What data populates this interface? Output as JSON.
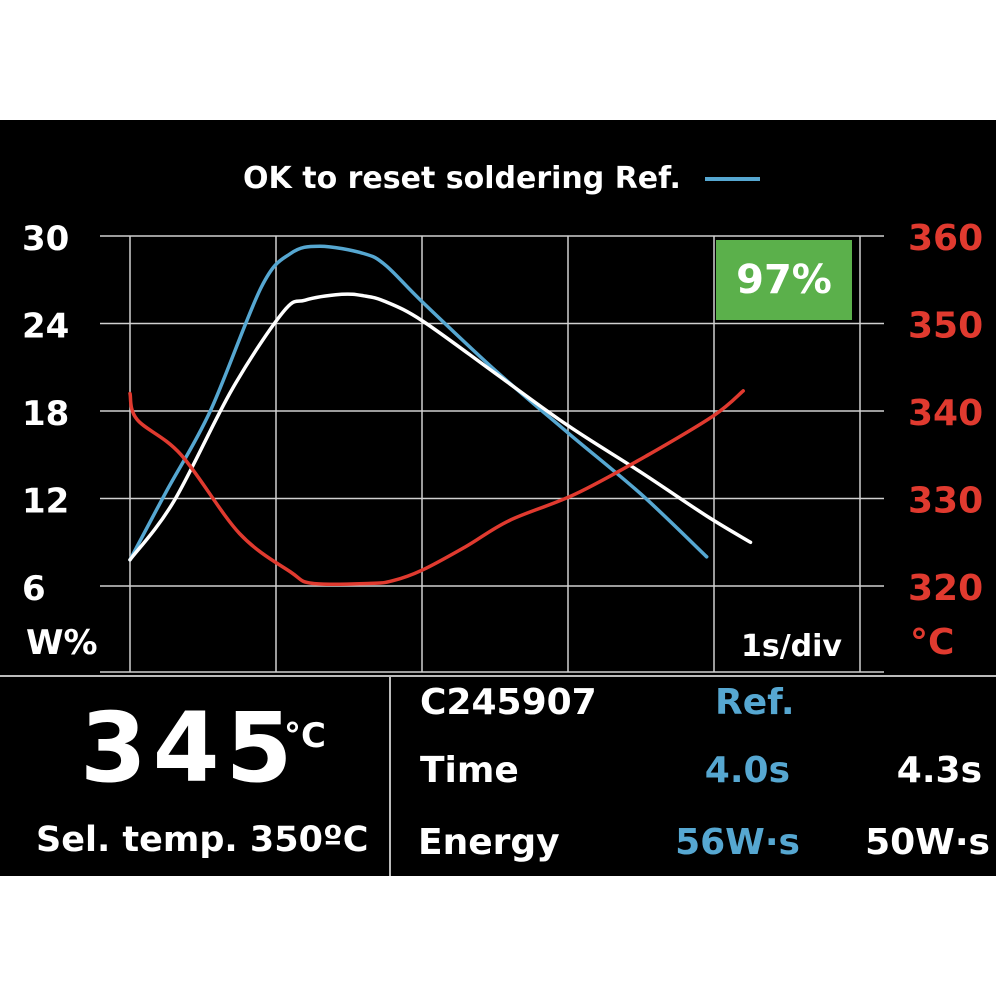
{
  "colors": {
    "background": "#000000",
    "reference_curve": "#56a7d1",
    "power_curve": "#ffffff",
    "temperature_curve": "#e03a2f",
    "grid": "#d0d0d0",
    "badge": "#5bb04b"
  },
  "chart_data": {
    "type": "line",
    "title": "OK to reset soldering Ref.",
    "left_axis": {
      "label": "W%",
      "ticks": [
        "30",
        "24",
        "18",
        "12",
        "6"
      ],
      "range": [
        6,
        30
      ]
    },
    "right_axis": {
      "label": "°C",
      "ticks": [
        "360",
        "350",
        "340",
        "330",
        "320"
      ],
      "range": [
        320,
        360
      ]
    },
    "x_axis": {
      "label": "1s/div",
      "range": [
        0,
        5
      ]
    },
    "grid": true,
    "match_badge": "97%",
    "series": [
      {
        "axis": "left",
        "color": "#56a7d1",
        "x": [
          0,
          0.25,
          0.55,
          0.9,
          1.1,
          1.3,
          1.6,
          1.75,
          2.0,
          2.5,
          3.0,
          3.5,
          3.95
        ],
        "y": [
          7.8,
          12.5,
          18.0,
          26.5,
          28.8,
          29.3,
          28.8,
          28.0,
          25.5,
          20.8,
          16.5,
          12.3,
          8.0
        ]
      },
      {
        "axis": "left",
        "color": "#ffffff",
        "x": [
          0,
          0.3,
          0.7,
          1.05,
          1.2,
          1.45,
          1.6,
          1.75,
          2.0,
          2.5,
          3.0,
          3.5,
          3.95,
          4.25
        ],
        "y": [
          7.8,
          11.8,
          19.5,
          24.8,
          25.6,
          26.0,
          25.9,
          25.5,
          24.2,
          20.6,
          17.0,
          13.8,
          10.8,
          9.0
        ]
      },
      {
        "axis": "right",
        "color": "#e03a2f",
        "x": [
          0,
          0.05,
          0.35,
          0.75,
          1.1,
          1.25,
          1.65,
          1.8,
          2.0,
          2.3,
          2.6,
          3.05,
          3.55,
          4.0,
          4.2
        ],
        "y": [
          342,
          339,
          335,
          326,
          321.6,
          320.3,
          320.3,
          320.6,
          321.8,
          324.5,
          327.5,
          330.5,
          335,
          339.5,
          342.3
        ]
      }
    ]
  },
  "readout": {
    "current_temp": "345",
    "current_temp_unit": "°C",
    "selected_temp": "Sel. temp. 350ºC"
  },
  "table": {
    "tool_id": "C245907",
    "ref_header": "Ref.",
    "rows": [
      {
        "label": "Time",
        "ref": "4.0s",
        "value": "4.3s"
      },
      {
        "label": "Energy",
        "ref": "56W·s",
        "value": "50W·s"
      }
    ]
  }
}
